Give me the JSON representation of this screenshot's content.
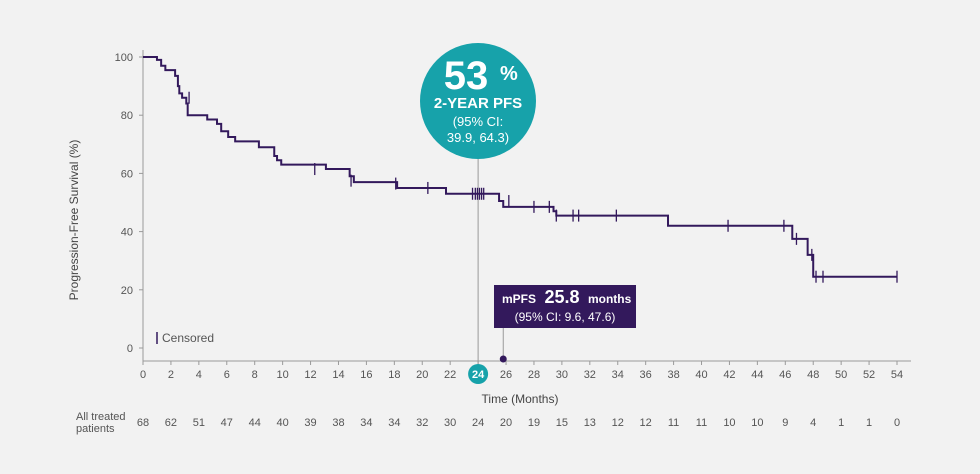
{
  "chart_data": {
    "type": "line",
    "xlabel": "Time (Months)",
    "ylabel": "Progression-Free Survival (%)",
    "xlim": [
      0,
      54
    ],
    "ylim": [
      0,
      100
    ],
    "x_ticks": [
      0,
      2,
      4,
      6,
      8,
      10,
      12,
      14,
      16,
      18,
      20,
      22,
      24,
      26,
      28,
      30,
      32,
      34,
      36,
      38,
      40,
      42,
      44,
      46,
      48,
      50,
      52,
      54
    ],
    "y_ticks": [
      0,
      20,
      40,
      60,
      80,
      100
    ],
    "highlighted_x_tick": "24",
    "series": [
      {
        "color": "#33195c",
        "steps": [
          [
            0,
            100
          ],
          [
            1.0,
            99
          ],
          [
            1.3,
            97
          ],
          [
            1.6,
            95.5
          ],
          [
            2.1,
            95.5
          ],
          [
            2.3,
            93.5
          ],
          [
            2.5,
            90
          ],
          [
            2.6,
            87.5
          ],
          [
            2.8,
            86
          ],
          [
            3.1,
            84
          ],
          [
            3.2,
            80
          ],
          [
            4.5,
            80
          ],
          [
            4.6,
            78.5
          ],
          [
            5.3,
            77
          ],
          [
            5.6,
            74.5
          ],
          [
            6.1,
            72.5
          ],
          [
            6.6,
            71
          ],
          [
            8.1,
            71
          ],
          [
            8.3,
            69
          ],
          [
            9.3,
            69
          ],
          [
            9.4,
            66
          ],
          [
            9.6,
            64.5
          ],
          [
            9.9,
            63
          ],
          [
            12.9,
            63
          ],
          [
            13.1,
            61.5
          ],
          [
            14.5,
            61.5
          ],
          [
            14.8,
            59
          ],
          [
            15.1,
            57
          ],
          [
            18.1,
            57
          ],
          [
            18.2,
            55
          ],
          [
            21.6,
            55
          ],
          [
            21.7,
            53
          ],
          [
            25.4,
            53
          ],
          [
            25.5,
            50.5
          ],
          [
            25.8,
            48.5
          ],
          [
            29.1,
            48.5
          ],
          [
            29.4,
            47
          ],
          [
            29.6,
            45.5
          ],
          [
            37.4,
            45.5
          ],
          [
            37.6,
            42
          ],
          [
            46.3,
            42
          ],
          [
            46.5,
            37.5
          ],
          [
            47.5,
            37.5
          ],
          [
            47.6,
            32
          ],
          [
            47.9,
            32
          ],
          [
            48.0,
            24.5
          ],
          [
            54,
            24.5
          ]
        ]
      }
    ],
    "censored": [
      [
        3.3,
        86
      ],
      [
        12.3,
        61.5
      ],
      [
        14.9,
        57.5
      ],
      [
        18.1,
        56.5
      ],
      [
        20.4,
        55
      ],
      [
        23.6,
        53
      ],
      [
        23.8,
        53
      ],
      [
        23.95,
        53
      ],
      [
        24.1,
        53
      ],
      [
        24.25,
        53
      ],
      [
        24.4,
        53
      ],
      [
        26.2,
        50.5
      ],
      [
        28.0,
        48.5
      ],
      [
        29.1,
        48.5
      ],
      [
        29.6,
        45.5
      ],
      [
        30.8,
        45.5
      ],
      [
        31.2,
        45.5
      ],
      [
        33.9,
        45.5
      ],
      [
        41.9,
        42
      ],
      [
        45.9,
        42
      ],
      [
        46.8,
        37.5
      ],
      [
        47.9,
        32
      ],
      [
        48.2,
        24.5
      ],
      [
        48.7,
        24.5
      ],
      [
        54.0,
        24.5
      ]
    ],
    "legend": "Censored",
    "callout_24": {
      "percent": "53",
      "percent_sign": "%",
      "label": "2-YEAR PFS",
      "ci_line1": "(95% CI:",
      "ci_line2": "39.9, 64.3)",
      "x": 24
    },
    "callout_median": {
      "prefix": "mPFS",
      "value": "25.8",
      "unit": "months",
      "ci": "(95% CI: 9.6, 47.6)",
      "x": 25.8
    },
    "risk_table": {
      "label_line1": "All treated",
      "label_line2": "patients",
      "x": [
        0,
        2,
        4,
        6,
        8,
        10,
        12,
        14,
        16,
        18,
        20,
        22,
        24,
        26,
        28,
        30,
        32,
        34,
        36,
        38,
        40,
        42,
        44,
        46,
        48,
        50,
        52,
        54
      ],
      "values": [
        68,
        62,
        51,
        47,
        44,
        40,
        39,
        38,
        34,
        34,
        32,
        30,
        24,
        20,
        19,
        15,
        13,
        12,
        12,
        11,
        11,
        10,
        10,
        9,
        4,
        1,
        1,
        0
      ]
    },
    "colors": {
      "line": "#33195c",
      "teal": "#17a2aa",
      "axis": "#999999",
      "background": "#f2f2f2"
    }
  }
}
